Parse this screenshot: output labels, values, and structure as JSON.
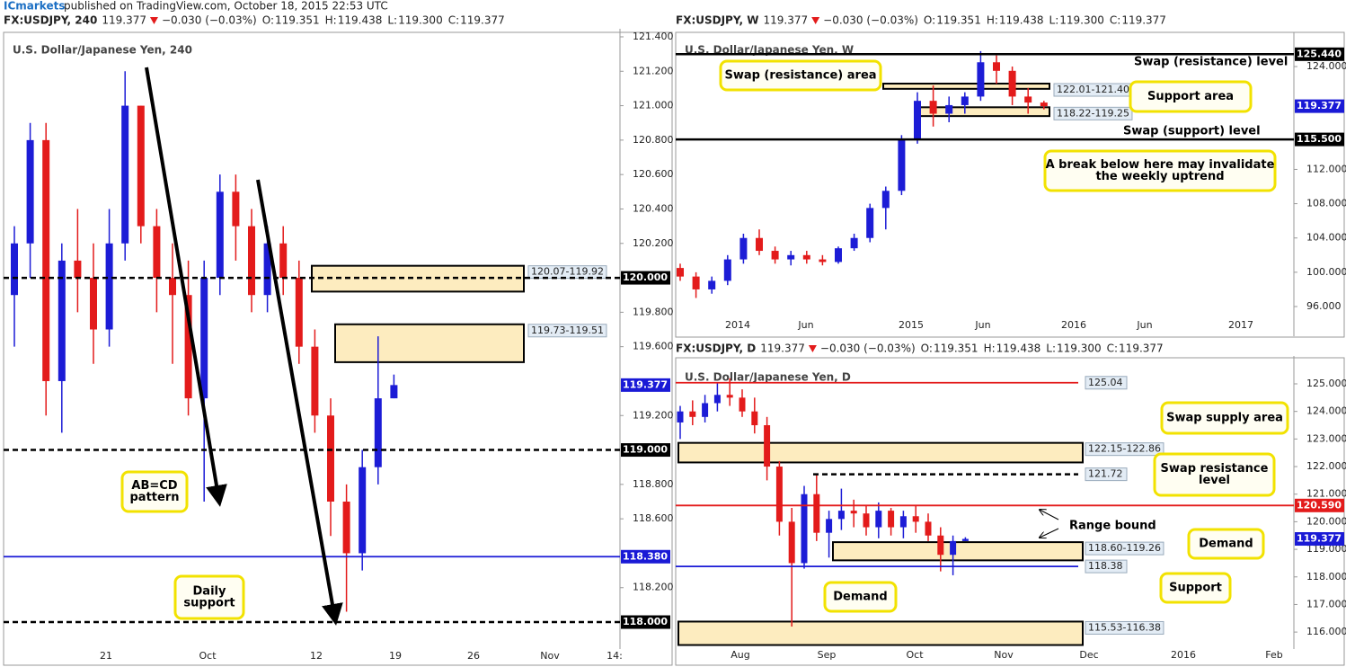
{
  "page": {
    "author": "ICmarkets",
    "published": "published on TradingView.com, October 18, 2015 22:53 UTC"
  },
  "chart_data": [
    {
      "type": "candlestick",
      "header": {
        "symbol": "FX:USDJPY, 240",
        "last": "119.377",
        "change": "−0.030 (−0.03%)",
        "ohlc": [
          {
            "label": "O:",
            "value": "119.351"
          },
          {
            "label": "H:",
            "value": "119.438"
          },
          {
            "label": "L:",
            "value": "119.300"
          },
          {
            "label": "C:",
            "value": "119.377"
          }
        ]
      },
      "title": "U.S. Dollar/Japanese Yen, 240",
      "ylim": [
        117.854,
        121.426
      ],
      "yticks": [
        {
          "value": 121.4,
          "label": "121.400"
        },
        {
          "value": 121.2,
          "label": "121.200"
        },
        {
          "value": 121.0,
          "label": "121.000"
        },
        {
          "value": 120.8,
          "label": "120.800"
        },
        {
          "value": 120.6,
          "label": "120.600"
        },
        {
          "value": 120.4,
          "label": "120.400"
        },
        {
          "value": 120.2,
          "label": "120.200"
        },
        {
          "value": 119.8,
          "label": "119.800"
        },
        {
          "value": 119.6,
          "label": "119.600"
        },
        {
          "value": 119.2,
          "label": "119.200"
        },
        {
          "value": 118.8,
          "label": "118.800"
        },
        {
          "value": 118.6,
          "label": "118.600"
        },
        {
          "value": 118.2,
          "label": "118.200"
        }
      ],
      "xlabels": [
        "21",
        "Oct",
        "12",
        "19",
        "26",
        "Nov",
        "14:"
      ],
      "up_color": "#1c1cd6",
      "down_color": "#e31b1b",
      "open": [
        119.9,
        120.2,
        120.8,
        119.4,
        120.1,
        120.0,
        119.7,
        120.2,
        121.0,
        120.3,
        120.0,
        119.9,
        119.3,
        120.0,
        120.5,
        120.3,
        119.9,
        120.2,
        120.0,
        119.6,
        119.2,
        118.7,
        118.4,
        118.9,
        119.3
      ],
      "high": [
        120.3,
        120.9,
        120.9,
        120.2,
        120.4,
        120.2,
        120.4,
        121.2,
        121.0,
        120.4,
        120.2,
        120.1,
        120.1,
        120.6,
        120.6,
        120.4,
        120.3,
        120.3,
        120.1,
        119.7,
        119.3,
        118.8,
        119.0,
        119.66,
        119.438
      ],
      "low": [
        119.6,
        120.0,
        119.2,
        119.1,
        119.8,
        119.5,
        119.6,
        120.1,
        120.2,
        119.8,
        119.5,
        119.2,
        118.7,
        119.9,
        120.1,
        119.8,
        119.8,
        119.9,
        119.5,
        119.1,
        118.5,
        118.06,
        118.3,
        118.8,
        119.3
      ],
      "close": [
        120.2,
        120.8,
        119.4,
        120.1,
        120.0,
        119.7,
        120.2,
        121.0,
        120.3,
        120.0,
        119.9,
        119.3,
        120.0,
        120.5,
        120.3,
        119.9,
        120.2,
        120.0,
        119.6,
        119.2,
        118.7,
        118.4,
        118.9,
        119.3,
        119.377
      ],
      "levels": [
        {
          "value": 120,
          "label": "120.000",
          "color": "#000000",
          "style": "dashed",
          "tag": "filled"
        },
        {
          "value": 119,
          "label": "119.000",
          "color": "#000000",
          "style": "dashed",
          "tag": "filled"
        },
        {
          "value": 118.38,
          "label": "118.380",
          "color": "#1a1ad6",
          "style": "solid",
          "tag": "filled"
        },
        {
          "value": 118,
          "label": "118.000",
          "color": "#000000",
          "style": "dashed",
          "tag": "filled"
        },
        {
          "value": 119.377,
          "label": "119.377",
          "color": "#1a1ad6",
          "style": "none",
          "tag": "filled"
        }
      ],
      "zones": [
        {
          "high": 120.07,
          "low": 119.92,
          "label": "120.07-119.92"
        },
        {
          "high": 119.73,
          "low": 119.51,
          "label": "119.73-119.51"
        }
      ],
      "annotations": [
        {
          "lines": [
            "AB=CD",
            "pattern"
          ],
          "boxed": true
        },
        {
          "lines": [
            "Daily",
            "support"
          ],
          "boxed": true
        }
      ]
    },
    {
      "type": "candlestick",
      "header": {
        "symbol": "FX:USDJPY, W",
        "last": "119.377",
        "change": "−0.030 (−0.03%)",
        "ohlc": [
          {
            "label": "O:",
            "value": "119.351"
          },
          {
            "label": "H:",
            "value": "119.438"
          },
          {
            "label": "L:",
            "value": "119.300"
          },
          {
            "label": "C:",
            "value": "119.377"
          }
        ]
      },
      "title": "U.S. Dollar/Japanese Yen, W",
      "ylim": [
        92.75,
        127.57
      ],
      "yticks": [
        {
          "value": 124,
          "label": "124.000"
        },
        {
          "value": 112,
          "label": "112.000"
        },
        {
          "value": 108,
          "label": "108.000"
        },
        {
          "value": 104,
          "label": "104.000"
        },
        {
          "value": 100,
          "label": "100.000"
        },
        {
          "value": 96,
          "label": "96.000"
        }
      ],
      "xlabels": [
        "2014",
        "Jun",
        "2015",
        "Jun",
        "2016",
        "Jun",
        "2017"
      ],
      "up_color": "#1c1cd6",
      "down_color": "#e31b1b",
      "open": [
        100.5,
        99.5,
        98,
        99,
        101.5,
        104,
        102.5,
        101.5,
        102,
        101.5,
        101.2,
        102.8,
        104,
        107.5,
        109.5,
        115.5,
        120,
        118.5,
        119.5,
        120.5,
        124.5,
        123.5,
        120.5,
        119.8
      ],
      "high": [
        101,
        100,
        99.5,
        102,
        104.5,
        105,
        103,
        102.5,
        102.5,
        102,
        103,
        104.5,
        108,
        110,
        116,
        121,
        121.8,
        120.5,
        121,
        125.8,
        125.3,
        124,
        121.5,
        120
      ],
      "low": [
        99,
        97,
        97.5,
        98.5,
        101,
        102,
        101,
        100.8,
        101,
        100.8,
        101,
        102.5,
        103.5,
        105,
        109,
        115,
        117,
        117.5,
        118.5,
        120,
        122,
        119.5,
        118.5,
        119
      ],
      "close": [
        99.5,
        98,
        99,
        101.5,
        104,
        102.5,
        101.5,
        102,
        101.5,
        101.2,
        102.8,
        104,
        107.5,
        109.5,
        115.5,
        120,
        118.5,
        119.5,
        120.5,
        124.5,
        123.5,
        120.5,
        119.8,
        119.377
      ],
      "levels": [
        {
          "value": 125.44,
          "label": "125.440",
          "color": "#000000",
          "style": "solid",
          "tag": "filled"
        },
        {
          "value": 115.5,
          "label": "115.500",
          "color": "#000000",
          "style": "solid",
          "tag": "filled"
        },
        {
          "value": 119.377,
          "label": "119.377",
          "color": "#1a1ad6",
          "style": "none",
          "tag": "filled"
        }
      ],
      "zones": [
        {
          "high": 122.01,
          "low": 121.4,
          "label": "122.01-121.40"
        },
        {
          "high": 119.25,
          "low": 118.22,
          "label": "118.22-119.25"
        }
      ],
      "annotations": [
        {
          "lines": [
            "Swap (resistance) area"
          ],
          "boxed": true
        },
        {
          "lines": [
            "Support area"
          ],
          "boxed": true
        },
        {
          "lines": [
            "Swap (resistance) level"
          ],
          "boxed": false
        },
        {
          "lines": [
            "Swap (support) level"
          ],
          "boxed": false
        },
        {
          "lines": [
            "A break below here may invalidate",
            "the weekly uptrend"
          ],
          "boxed": true
        }
      ]
    },
    {
      "type": "candlestick",
      "header": {
        "symbol": "FX:USDJPY, D",
        "last": "119.377",
        "change": "−0.030 (−0.03%)",
        "ohlc": [
          {
            "label": "O:",
            "value": "119.351"
          },
          {
            "label": "H:",
            "value": "119.438"
          },
          {
            "label": "L:",
            "value": "119.300"
          },
          {
            "label": "C:",
            "value": "119.377"
          }
        ]
      },
      "title": "U.S. Dollar/Japanese Yen, D",
      "ylim": [
        115.45,
        125.88
      ],
      "yticks": [
        {
          "value": 125,
          "label": "125.000"
        },
        {
          "value": 124,
          "label": "124.000"
        },
        {
          "value": 123,
          "label": "123.000"
        },
        {
          "value": 122,
          "label": "122.000"
        },
        {
          "value": 121,
          "label": "121.000"
        },
        {
          "value": 120,
          "label": "120.000"
        },
        {
          "value": 119,
          "label": "119.000"
        },
        {
          "value": 118,
          "label": "118.000"
        },
        {
          "value": 117,
          "label": "117.000"
        },
        {
          "value": 116,
          "label": "116.000"
        }
      ],
      "xlabels": [
        "Aug",
        "Sep",
        "Oct",
        "Nov",
        "Dec",
        "2016",
        "Feb"
      ],
      "up_color": "#1c1cd6",
      "down_color": "#e31b1b",
      "open": [
        123.6,
        124,
        123.8,
        124.3,
        124.6,
        124.5,
        124,
        123.5,
        122,
        120,
        118.5,
        121,
        119.6,
        120.1,
        120.4,
        120.3,
        119.8,
        120.4,
        119.8,
        120.2,
        120,
        119.5,
        118.8,
        119.3
      ],
      "high": [
        124.2,
        124.4,
        124.6,
        125.04,
        125.2,
        124.8,
        124.5,
        123.8,
        122.2,
        120.5,
        121.3,
        121.7,
        120.4,
        121.2,
        120.8,
        120.6,
        120.7,
        120.5,
        120.4,
        120.6,
        120.3,
        119.8,
        119.5,
        119.438
      ],
      "low": [
        123,
        123.5,
        123.6,
        124,
        124.2,
        123.8,
        123.2,
        121.5,
        119.5,
        116.2,
        118.3,
        119.3,
        118.7,
        119.7,
        119.8,
        119.5,
        119.4,
        119.5,
        119.4,
        119.6,
        119.3,
        118.2,
        118.06,
        119.3
      ],
      "close": [
        124,
        123.8,
        124.3,
        124.6,
        124.5,
        124,
        123.5,
        122,
        120,
        118.5,
        121,
        119.6,
        120.1,
        120.4,
        120.3,
        119.8,
        120.4,
        119.8,
        120.2,
        120,
        119.5,
        118.8,
        119.3,
        119.377
      ],
      "levels": [
        {
          "value": 125.04,
          "label": "125.04",
          "color": "#e31b1b",
          "style": "solid",
          "tag": "light"
        },
        {
          "value": 121.72,
          "label": "121.72",
          "color": "#000000",
          "style": "dashed",
          "tag": "light"
        },
        {
          "value": 120.59,
          "label": "120.590",
          "color": "#e31b1b",
          "style": "solid",
          "tag": "filled"
        },
        {
          "value": 118.38,
          "label": "118.38",
          "color": "#1a1ad6",
          "style": "solid",
          "tag": "light"
        },
        {
          "value": 119.377,
          "label": "119.377",
          "color": "#1a1ad6",
          "style": "none",
          "tag": "filled"
        }
      ],
      "zones": [
        {
          "high": 122.86,
          "low": 122.15,
          "label": "122.15-122.86"
        },
        {
          "high": 119.26,
          "low": 118.6,
          "label": "118.60-119.26"
        },
        {
          "high": 116.38,
          "low": 115.53,
          "label": "115.53-116.38"
        }
      ],
      "annotations": [
        {
          "lines": [
            "Swap supply area"
          ],
          "boxed": true
        },
        {
          "lines": [
            "Swap resistance",
            "level"
          ],
          "boxed": true
        },
        {
          "lines": [
            "Range bound"
          ],
          "boxed": false
        },
        {
          "lines": [
            "Demand"
          ],
          "boxed": true
        },
        {
          "lines": [
            "Support"
          ],
          "boxed": true
        },
        {
          "lines": [
            "Demand"
          ],
          "boxed": true
        }
      ]
    }
  ]
}
